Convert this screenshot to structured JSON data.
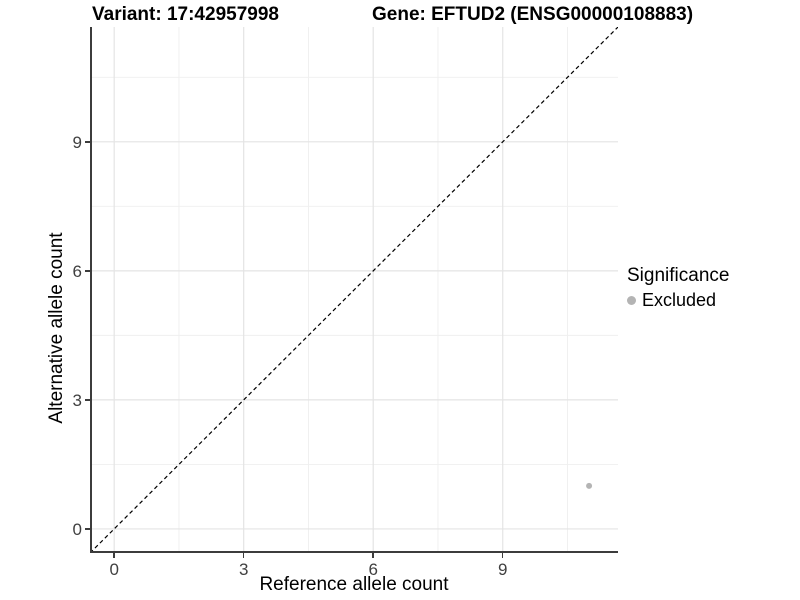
{
  "chart_data": {
    "type": "scatter",
    "titles": {
      "left": "Variant: 17:42957998",
      "right": "Gene: EFTUD2 (ENSG00000108883)"
    },
    "xlabel": "Reference allele count",
    "ylabel": "Alternative allele count",
    "x_ticks": [
      0,
      3,
      6,
      9
    ],
    "y_ticks": [
      0,
      3,
      6,
      9
    ],
    "x_minor_ticks": [
      1.5,
      4.5,
      7.5,
      10.5
    ],
    "y_minor_ticks": [
      1.5,
      4.5,
      7.5,
      10.5
    ],
    "xlim": [
      -0.56,
      11.67
    ],
    "ylim": [
      -0.56,
      11.67
    ],
    "grid": {
      "major_color": "#e4e4e4",
      "minor_color": "#efefef"
    },
    "axis_color": "#3c3c3c",
    "tick_label_color": "#404040",
    "identity_line": {
      "style": "dashed",
      "color": "#000000",
      "slope": 1,
      "intercept": 0
    },
    "series": [
      {
        "name": "Excluded",
        "color": "#b4b4b4",
        "points": [
          {
            "x": 11,
            "y": 1
          }
        ]
      }
    ],
    "legend": {
      "title": "Significance",
      "position": "right",
      "items": [
        {
          "label": "Excluded",
          "color": "#b4b4b4"
        }
      ]
    }
  }
}
